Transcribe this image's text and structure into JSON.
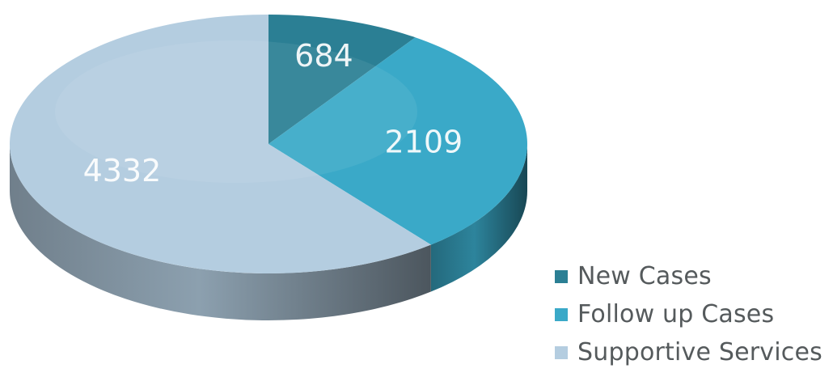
{
  "chart_data": {
    "type": "pie",
    "title": "",
    "categories": [
      "New Cases",
      "Follow up Cases",
      "Supportive Services"
    ],
    "values": [
      684,
      2109,
      4332
    ],
    "colors": [
      "#2b7f94",
      "#3aa9c8",
      "#b4cde0"
    ],
    "legend_position": "bottom-right",
    "data_labels": true,
    "three_d": true
  },
  "legend": {
    "items": [
      {
        "label": "New Cases",
        "color": "#2b7f94"
      },
      {
        "label": "Follow up Cases",
        "color": "#3aa9c8"
      },
      {
        "label": "Supportive Services",
        "color": "#b4cde0"
      }
    ]
  }
}
